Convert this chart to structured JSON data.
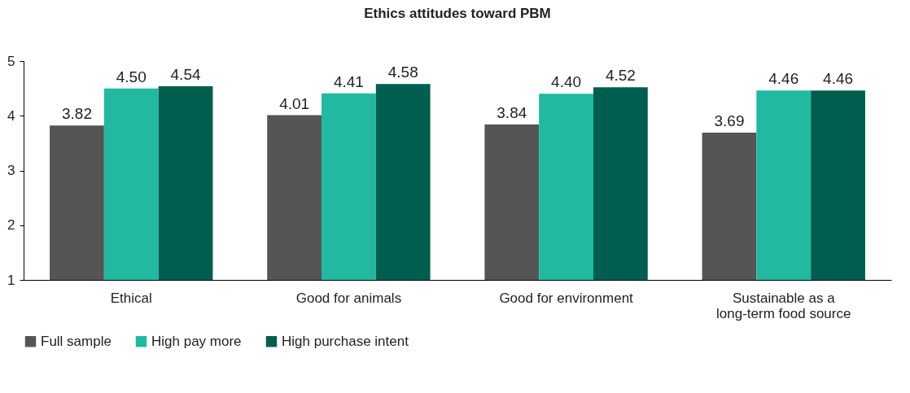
{
  "chart_data": {
    "type": "bar",
    "title": "Ethics attitudes toward PBM",
    "categories": [
      "Ethical",
      "Good for animals",
      "Good for environment",
      "Sustainable as a long-term food source"
    ],
    "series": [
      {
        "name": "Full sample",
        "color": "#555555",
        "values": [
          3.82,
          4.01,
          3.84,
          3.69
        ],
        "value_labels": [
          "3.82",
          "4.01",
          "3.84",
          "3.69"
        ]
      },
      {
        "name": "High pay more",
        "color": "#21b9a0",
        "values": [
          4.5,
          4.41,
          4.4,
          4.46
        ],
        "value_labels": [
          "4.50",
          "4.41",
          "4.40",
          "4.46"
        ]
      },
      {
        "name": "High purchase intent",
        "color": "#005e4f",
        "values": [
          4.54,
          4.58,
          4.52,
          4.46
        ],
        "value_labels": [
          "4.54",
          "4.58",
          "4.52",
          "4.46"
        ]
      }
    ],
    "ylim": [
      1,
      5
    ],
    "yticks": [
      1,
      2,
      3,
      4,
      5
    ],
    "grid": false,
    "legend": "bottom"
  }
}
